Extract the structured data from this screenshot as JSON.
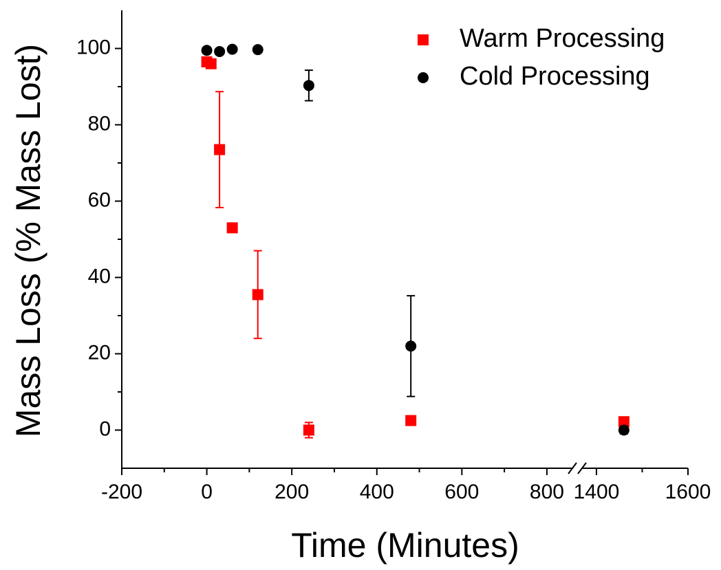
{
  "chart_data": {
    "type": "scatter",
    "x_label": "Time (Minutes)",
    "y_label": "Mass Loss (% Mass Lost)",
    "x_segments": [
      {
        "xlim": [
          -200,
          860
        ],
        "xticks": [
          -200,
          0,
          200,
          400,
          600,
          800
        ]
      },
      {
        "xlim": [
          1370,
          1600
        ],
        "xticks": [
          1400,
          1600
        ]
      }
    ],
    "ylim": [
      -10,
      110
    ],
    "yticks": [
      0,
      20,
      40,
      60,
      80,
      100
    ],
    "legend": "upper right",
    "series": [
      {
        "name": "Warm Processing",
        "color": "#ff0000",
        "marker": "square",
        "x": [
          0,
          10,
          30,
          60,
          120,
          240,
          480,
          1460
        ],
        "values": [
          96.5,
          96,
          73.5,
          53,
          35.5,
          0,
          2.5,
          2.2
        ],
        "errors": [
          1,
          1,
          15.2,
          1,
          11.5,
          2,
          0.5,
          0.5
        ]
      },
      {
        "name": "Cold Processing",
        "color": "#000000",
        "marker": "circle",
        "x": [
          0,
          30,
          60,
          120,
          240,
          480,
          1460
        ],
        "values": [
          99.5,
          99.2,
          99.8,
          99.7,
          90.3,
          22,
          0
        ],
        "errors": [
          0.3,
          0.3,
          0.3,
          0.3,
          4,
          13.2,
          1
        ]
      }
    ]
  }
}
